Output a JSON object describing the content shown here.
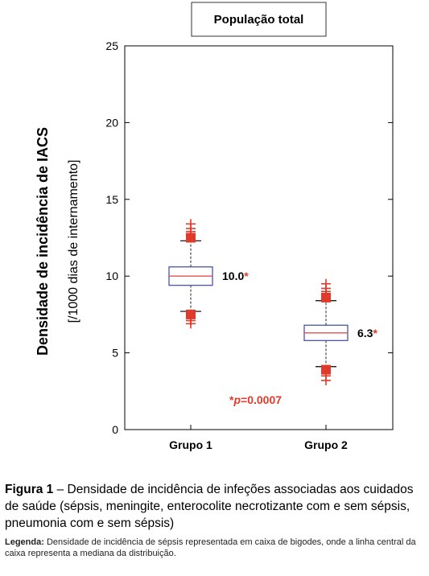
{
  "chart_data": {
    "type": "box",
    "title": "População total",
    "ylabel": "Densidade de incidência de IACS",
    "ylabel_units": "[/1000 dias de internamento]",
    "ylim": [
      0,
      25
    ],
    "yticks": [
      0,
      5,
      10,
      15,
      20,
      25
    ],
    "categories": [
      "Grupo 1",
      "Grupo 2"
    ],
    "boxes": [
      {
        "category": "Grupo 1",
        "median": 10.0,
        "q1": 9.4,
        "q3": 10.6,
        "whisker_low": 7.7,
        "whisker_high": 12.3,
        "outliers": [
          6.9,
          7.1,
          7.3,
          7.5,
          12.5,
          12.7,
          12.9,
          13.1,
          13.4
        ],
        "label": "10.0",
        "star": "*"
      },
      {
        "category": "Grupo 2",
        "median": 6.3,
        "q1": 5.8,
        "q3": 6.8,
        "whisker_low": 4.1,
        "whisker_high": 8.4,
        "outliers": [
          3.2,
          3.5,
          3.7,
          3.9,
          8.6,
          8.8,
          9.0,
          9.2,
          9.5
        ],
        "label": "6.3",
        "star": "*"
      }
    ],
    "annotation": {
      "prefix": "*",
      "p": "p",
      "rest": "=0.0007"
    },
    "colors": {
      "box": "#4a55a8",
      "median": "#e05050",
      "outlier": "#e03a2a",
      "annotation": "#e03a2a"
    }
  },
  "caption": {
    "figure_label": "Figura 1",
    "figure_text": " – Densidade de incidência de infeções associadas aos cuidados de saúde (sépsis, meningite, enterocolite necrotizante com e sem sépsis, pneumonia com e sem sépsis)",
    "legend_label": "Legenda:",
    "legend_text": " Densidade de incidência de sépsis representada em caixa de bigodes, onde a linha central da caixa representa a mediana da distribuição."
  }
}
